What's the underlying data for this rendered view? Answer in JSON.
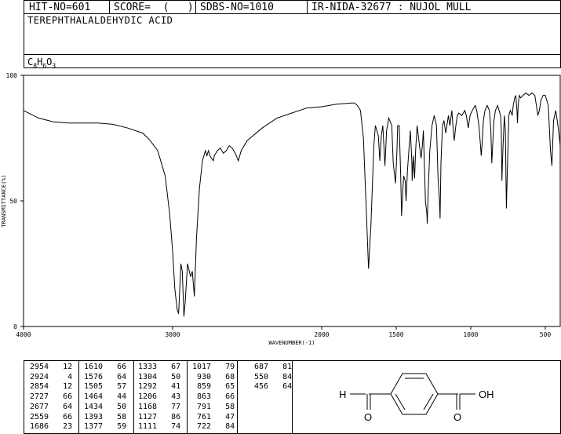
{
  "header": {
    "hit_no": "HIT-NO=601",
    "score": "SCORE=  (   )",
    "sdbs_no": "SDBS-NO=1010",
    "ir_id": "IR-NIDA-32677 : NUJOL MULL"
  },
  "compound_name": "TEREPHTHALALDEHYDIC ACID",
  "formula": {
    "c": "C",
    "c_n": "8",
    "h": "H",
    "h_n": "6",
    "o": "O",
    "o_n": "3"
  },
  "chart_data": {
    "type": "line",
    "xlabel": "WAVENUMBER(-1)",
    "ylabel": "TRANSMITTANCE(%)",
    "xlim": [
      4000,
      400
    ],
    "ylim": [
      0,
      100
    ],
    "x_ticks": [
      4000,
      3000,
      2000,
      1500,
      1000,
      500
    ],
    "y_ticks": [
      0,
      50,
      100
    ],
    "series": [
      {
        "points": [
          [
            4000,
            86
          ],
          [
            3900,
            83
          ],
          [
            3800,
            81.5
          ],
          [
            3700,
            81
          ],
          [
            3600,
            81
          ],
          [
            3500,
            81
          ],
          [
            3400,
            80.5
          ],
          [
            3300,
            79
          ],
          [
            3200,
            77
          ],
          [
            3150,
            74
          ],
          [
            3100,
            70
          ],
          [
            3050,
            60
          ],
          [
            3020,
            45
          ],
          [
            3000,
            30
          ],
          [
            2985,
            15
          ],
          [
            2970,
            7
          ],
          [
            2960,
            5
          ],
          [
            2954,
            12
          ],
          [
            2945,
            25
          ],
          [
            2935,
            22
          ],
          [
            2924,
            4
          ],
          [
            2915,
            10
          ],
          [
            2900,
            25
          ],
          [
            2880,
            20
          ],
          [
            2877,
            20
          ],
          [
            2868,
            22
          ],
          [
            2854,
            12
          ],
          [
            2840,
            35
          ],
          [
            2820,
            55
          ],
          [
            2800,
            66
          ],
          [
            2780,
            70
          ],
          [
            2770,
            68
          ],
          [
            2760,
            70
          ],
          [
            2750,
            68
          ],
          [
            2740,
            67
          ],
          [
            2727,
            66
          ],
          [
            2720,
            68
          ],
          [
            2700,
            70
          ],
          [
            2680,
            71
          ],
          [
            2660,
            69
          ],
          [
            2640,
            70
          ],
          [
            2620,
            72
          ],
          [
            2600,
            71
          ],
          [
            2580,
            69
          ],
          [
            2559,
            66
          ],
          [
            2540,
            70
          ],
          [
            2500,
            74
          ],
          [
            2400,
            79
          ],
          [
            2300,
            83
          ],
          [
            2200,
            85
          ],
          [
            2100,
            87
          ],
          [
            2000,
            87.5
          ],
          [
            1900,
            88.5
          ],
          [
            1800,
            89
          ],
          [
            1780,
            89
          ],
          [
            1760,
            88
          ],
          [
            1740,
            86
          ],
          [
            1720,
            75
          ],
          [
            1700,
            45
          ],
          [
            1686,
            23
          ],
          [
            1670,
            40
          ],
          [
            1650,
            72
          ],
          [
            1640,
            80
          ],
          [
            1620,
            76
          ],
          [
            1610,
            66
          ],
          [
            1600,
            76
          ],
          [
            1590,
            80
          ],
          [
            1576,
            64
          ],
          [
            1565,
            78
          ],
          [
            1550,
            83
          ],
          [
            1530,
            80
          ],
          [
            1520,
            65
          ],
          [
            1505,
            57
          ],
          [
            1495,
            70
          ],
          [
            1490,
            80
          ],
          [
            1480,
            80
          ],
          [
            1470,
            60
          ],
          [
            1464,
            44
          ],
          [
            1455,
            55
          ],
          [
            1450,
            60
          ],
          [
            1440,
            58
          ],
          [
            1434,
            50
          ],
          [
            1425,
            62
          ],
          [
            1415,
            70
          ],
          [
            1405,
            78
          ],
          [
            1395,
            65
          ],
          [
            1393,
            58
          ],
          [
            1385,
            68
          ],
          [
            1377,
            59
          ],
          [
            1370,
            70
          ],
          [
            1360,
            80
          ],
          [
            1350,
            75
          ],
          [
            1340,
            70
          ],
          [
            1333,
            67
          ],
          [
            1325,
            72
          ],
          [
            1318,
            78
          ],
          [
            1310,
            62
          ],
          [
            1304,
            50
          ],
          [
            1295,
            45
          ],
          [
            1292,
            41
          ],
          [
            1285,
            55
          ],
          [
            1275,
            70
          ],
          [
            1260,
            80
          ],
          [
            1245,
            84
          ],
          [
            1230,
            80
          ],
          [
            1220,
            60
          ],
          [
            1210,
            50
          ],
          [
            1206,
            43
          ],
          [
            1200,
            65
          ],
          [
            1190,
            80
          ],
          [
            1180,
            82
          ],
          [
            1168,
            77
          ],
          [
            1160,
            80
          ],
          [
            1150,
            84
          ],
          [
            1140,
            80
          ],
          [
            1127,
            86
          ],
          [
            1120,
            80
          ],
          [
            1111,
            74
          ],
          [
            1100,
            80
          ],
          [
            1090,
            84
          ],
          [
            1080,
            85
          ],
          [
            1060,
            84
          ],
          [
            1040,
            86
          ],
          [
            1030,
            84
          ],
          [
            1017,
            79
          ],
          [
            1005,
            84
          ],
          [
            990,
            86
          ],
          [
            970,
            88
          ],
          [
            960,
            86
          ],
          [
            945,
            80
          ],
          [
            935,
            72
          ],
          [
            930,
            68
          ],
          [
            925,
            72
          ],
          [
            915,
            82
          ],
          [
            905,
            86
          ],
          [
            890,
            88
          ],
          [
            875,
            86
          ],
          [
            865,
            78
          ],
          [
            859,
            65
          ],
          [
            853,
            72
          ],
          [
            845,
            82
          ],
          [
            835,
            86
          ],
          [
            820,
            88
          ],
          [
            800,
            84
          ],
          [
            795,
            78
          ],
          [
            791,
            58
          ],
          [
            785,
            70
          ],
          [
            775,
            84
          ],
          [
            768,
            78
          ],
          [
            761,
            47
          ],
          [
            755,
            62
          ],
          [
            745,
            84
          ],
          [
            735,
            86
          ],
          [
            728,
            85
          ],
          [
            722,
            84
          ],
          [
            715,
            88
          ],
          [
            705,
            91
          ],
          [
            698,
            92
          ],
          [
            690,
            86
          ],
          [
            687,
            81
          ],
          [
            682,
            88
          ],
          [
            675,
            92
          ],
          [
            665,
            91
          ],
          [
            650,
            92
          ],
          [
            630,
            93
          ],
          [
            610,
            92
          ],
          [
            590,
            93
          ],
          [
            570,
            92
          ],
          [
            550,
            84
          ],
          [
            540,
            86
          ],
          [
            530,
            90
          ],
          [
            515,
            92
          ],
          [
            500,
            92
          ],
          [
            480,
            88
          ],
          [
            465,
            70
          ],
          [
            456,
            64
          ],
          [
            445,
            82
          ],
          [
            430,
            86
          ],
          [
            415,
            80
          ],
          [
            405,
            75
          ],
          [
            400,
            72
          ]
        ]
      }
    ]
  },
  "peaks": {
    "columns": [
      [
        [
          "2954",
          "12"
        ],
        [
          "2924",
          "4"
        ],
        [
          "2854",
          "12"
        ],
        [
          "2727",
          "66"
        ],
        [
          "2677",
          "64"
        ],
        [
          "2559",
          "66"
        ],
        [
          "1686",
          "23"
        ]
      ],
      [
        [
          "1610",
          "66"
        ],
        [
          "1576",
          "64"
        ],
        [
          "1505",
          "57"
        ],
        [
          "1464",
          "44"
        ],
        [
          "1434",
          "50"
        ],
        [
          "1393",
          "58"
        ],
        [
          "1377",
          "59"
        ]
      ],
      [
        [
          "1333",
          "67"
        ],
        [
          "1304",
          "50"
        ],
        [
          "1292",
          "41"
        ],
        [
          "1206",
          "43"
        ],
        [
          "1168",
          "77"
        ],
        [
          "1127",
          "86"
        ],
        [
          "1111",
          "74"
        ]
      ],
      [
        [
          "1017",
          "79"
        ],
        [
          "930",
          "68"
        ],
        [
          "859",
          "65"
        ],
        [
          "863",
          "66"
        ],
        [
          "791",
          "58"
        ],
        [
          "761",
          "47"
        ],
        [
          "722",
          "84"
        ]
      ],
      [
        [
          "687",
          "81"
        ],
        [
          "550",
          "84"
        ],
        [
          "456",
          "64"
        ]
      ]
    ]
  },
  "structure": {
    "left_atom": "H",
    "left_o": "O",
    "right_o": "O",
    "right_oh": "OH"
  }
}
